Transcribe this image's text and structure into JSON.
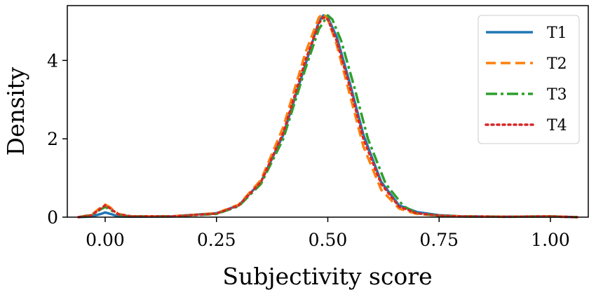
{
  "chart_data": {
    "type": "line",
    "title": "",
    "xlabel": "Subjectivity score",
    "ylabel": "Density",
    "xlim": [
      -0.085,
      1.085
    ],
    "ylim": [
      0,
      5.4
    ],
    "xticks": [
      0.0,
      0.25,
      0.5,
      0.75,
      1.0
    ],
    "xtick_labels": [
      "0.00",
      "0.25",
      "0.50",
      "0.75",
      "1.00"
    ],
    "yticks": [
      0,
      2,
      4
    ],
    "ytick_labels": [
      "0",
      "2",
      "4"
    ],
    "grid": false,
    "legend_position": "top-right",
    "series": [
      {
        "name": "T1",
        "color": "#1f77b4",
        "style": "solid",
        "points": [
          [
            -0.06,
            0
          ],
          [
            -0.03,
            0.02
          ],
          [
            -0.01,
            0.08
          ],
          [
            0.0,
            0.12
          ],
          [
            0.01,
            0.09
          ],
          [
            0.03,
            0.02
          ],
          [
            0.06,
            0.01
          ],
          [
            0.15,
            0.02
          ],
          [
            0.25,
            0.1
          ],
          [
            0.3,
            0.3
          ],
          [
            0.35,
            0.9
          ],
          [
            0.4,
            2.1
          ],
          [
            0.45,
            3.9
          ],
          [
            0.48,
            5.0
          ],
          [
            0.49,
            5.15
          ],
          [
            0.5,
            5.1
          ],
          [
            0.52,
            4.6
          ],
          [
            0.55,
            3.4
          ],
          [
            0.58,
            2.1
          ],
          [
            0.62,
            0.9
          ],
          [
            0.66,
            0.3
          ],
          [
            0.7,
            0.13
          ],
          [
            0.75,
            0.05
          ],
          [
            0.8,
            0.02
          ],
          [
            0.9,
            0.01
          ],
          [
            1.0,
            0.02
          ],
          [
            1.06,
            0
          ]
        ]
      },
      {
        "name": "T2",
        "color": "#ff7f0e",
        "style": "dashed",
        "points": [
          [
            -0.06,
            0
          ],
          [
            -0.03,
            0.06
          ],
          [
            -0.01,
            0.25
          ],
          [
            0.0,
            0.32
          ],
          [
            0.01,
            0.26
          ],
          [
            0.03,
            0.08
          ],
          [
            0.06,
            0.02
          ],
          [
            0.15,
            0.02
          ],
          [
            0.25,
            0.1
          ],
          [
            0.3,
            0.32
          ],
          [
            0.35,
            0.95
          ],
          [
            0.4,
            2.3
          ],
          [
            0.45,
            4.2
          ],
          [
            0.48,
            5.1
          ],
          [
            0.49,
            5.2
          ],
          [
            0.5,
            5.05
          ],
          [
            0.52,
            4.4
          ],
          [
            0.55,
            3.1
          ],
          [
            0.58,
            1.8
          ],
          [
            0.62,
            0.7
          ],
          [
            0.66,
            0.22
          ],
          [
            0.7,
            0.08
          ],
          [
            0.75,
            0.04
          ],
          [
            0.8,
            0.02
          ],
          [
            0.9,
            0.01
          ],
          [
            1.0,
            0.02
          ],
          [
            1.06,
            0
          ]
        ]
      },
      {
        "name": "T3",
        "color": "#2ca02c",
        "style": "dashdot",
        "points": [
          [
            -0.06,
            0
          ],
          [
            -0.03,
            0.05
          ],
          [
            -0.01,
            0.2
          ],
          [
            0.0,
            0.26
          ],
          [
            0.01,
            0.2
          ],
          [
            0.03,
            0.06
          ],
          [
            0.06,
            0.02
          ],
          [
            0.15,
            0.02
          ],
          [
            0.25,
            0.08
          ],
          [
            0.3,
            0.28
          ],
          [
            0.35,
            0.85
          ],
          [
            0.4,
            2.0
          ],
          [
            0.45,
            3.8
          ],
          [
            0.48,
            4.8
          ],
          [
            0.5,
            5.15
          ],
          [
            0.51,
            5.05
          ],
          [
            0.53,
            4.5
          ],
          [
            0.56,
            3.3
          ],
          [
            0.59,
            2.0
          ],
          [
            0.63,
            0.85
          ],
          [
            0.67,
            0.28
          ],
          [
            0.7,
            0.1
          ],
          [
            0.75,
            0.04
          ],
          [
            0.8,
            0.02
          ],
          [
            0.9,
            0.01
          ],
          [
            1.0,
            0.02
          ],
          [
            1.06,
            0
          ]
        ]
      },
      {
        "name": "T4",
        "color": "#d62728",
        "style": "dotted",
        "points": [
          [
            -0.06,
            0
          ],
          [
            -0.03,
            0.05
          ],
          [
            -0.01,
            0.22
          ],
          [
            0.0,
            0.3
          ],
          [
            0.01,
            0.23
          ],
          [
            0.03,
            0.07
          ],
          [
            0.06,
            0.02
          ],
          [
            0.15,
            0.02
          ],
          [
            0.25,
            0.09
          ],
          [
            0.3,
            0.3
          ],
          [
            0.35,
            0.9
          ],
          [
            0.4,
            2.15
          ],
          [
            0.45,
            4.0
          ],
          [
            0.48,
            4.95
          ],
          [
            0.49,
            5.1
          ],
          [
            0.5,
            5.05
          ],
          [
            0.52,
            4.5
          ],
          [
            0.55,
            3.3
          ],
          [
            0.58,
            2.0
          ],
          [
            0.62,
            0.85
          ],
          [
            0.66,
            0.27
          ],
          [
            0.7,
            0.1
          ],
          [
            0.75,
            0.04
          ],
          [
            0.8,
            0.02
          ],
          [
            0.9,
            0.01
          ],
          [
            1.0,
            0.02
          ],
          [
            1.06,
            0
          ]
        ]
      }
    ]
  }
}
